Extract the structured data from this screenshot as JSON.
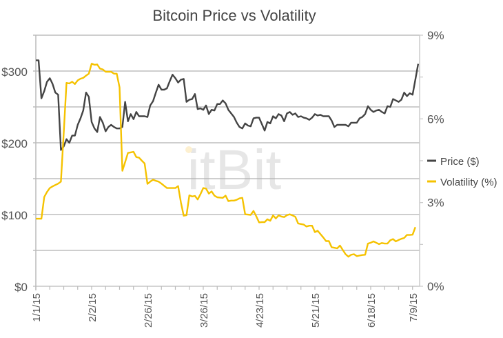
{
  "chart_data": {
    "type": "line",
    "title": "Bitcoin Price vs Volatility",
    "watermark": "itBit",
    "x_tick_labels": [
      "1/1/15",
      "2/2/15",
      "2/26/15",
      "3/26/15",
      "4/23/15",
      "5/21/15",
      "6/18/15",
      "7/9/15"
    ],
    "y_left": {
      "range": [
        0,
        350
      ],
      "tick_labels": [
        "$0",
        "$100",
        "$200",
        "$300"
      ],
      "tick_values": [
        0,
        100,
        200,
        300
      ],
      "gridlines": [
        0,
        50,
        100,
        150,
        200,
        250,
        300,
        350
      ]
    },
    "y_right": {
      "range": [
        0,
        9
      ],
      "tick_labels": [
        "0%",
        "3%",
        "6%",
        "9%"
      ],
      "tick_values": [
        0,
        3,
        6,
        9
      ]
    },
    "grid": true,
    "legend_position": "right",
    "series": [
      {
        "name": "Price ($)",
        "axis": "left",
        "color": "#444444",
        "values": [
          315,
          315,
          262,
          272,
          285,
          290,
          282,
          270,
          267,
          190,
          195,
          205,
          200,
          210,
          210,
          225,
          234,
          245,
          270,
          264,
          229,
          220,
          215,
          236,
          228,
          216,
          222,
          225,
          222,
          220,
          220,
          222,
          257,
          230,
          240,
          233,
          243,
          237,
          237,
          237,
          236,
          252,
          258,
          270,
          281,
          274,
          274,
          276,
          286,
          295,
          290,
          284,
          288,
          289,
          257,
          260,
          261,
          268,
          247,
          248,
          246,
          252,
          240,
          246,
          245,
          254,
          254,
          259,
          255,
          246,
          241,
          236,
          228,
          222,
          220,
          227,
          224,
          223,
          234,
          235,
          235,
          226,
          217,
          229,
          227,
          237,
          234,
          240,
          238,
          230,
          241,
          243,
          239,
          241,
          236,
          237,
          235,
          234,
          232,
          235,
          240,
          238,
          239,
          237,
          237,
          237,
          231,
          222,
          225,
          225,
          225,
          225,
          223,
          228,
          228,
          228,
          234,
          236,
          240,
          251,
          246,
          243,
          245,
          246,
          243,
          241,
          251,
          250,
          261,
          259,
          257,
          260,
          270,
          265,
          269,
          267,
          288,
          310
        ]
      },
      {
        "name": "Volatility (%)",
        "axis": "right",
        "color": "#F5C200",
        "values": [
          2.42,
          2.42,
          2.42,
          3.2,
          3.38,
          3.52,
          3.58,
          3.63,
          3.68,
          3.75,
          5.5,
          7.29,
          7.27,
          7.33,
          7.25,
          7.38,
          7.44,
          7.47,
          7.55,
          7.62,
          7.98,
          7.94,
          7.95,
          7.8,
          7.77,
          7.69,
          7.69,
          7.69,
          7.62,
          7.62,
          7.13,
          4.14,
          4.45,
          4.78,
          4.8,
          4.82,
          4.63,
          4.61,
          4.5,
          4.4,
          3.67,
          3.75,
          3.82,
          3.78,
          3.75,
          3.68,
          3.6,
          3.52,
          3.52,
          3.52,
          3.52,
          3.59,
          3.0,
          2.53,
          2.55,
          3.26,
          3.22,
          3.24,
          3.11,
          3.3,
          3.52,
          3.5,
          3.32,
          3.4,
          3.25,
          3.19,
          3.18,
          3.17,
          3.25,
          3.05,
          3.07,
          3.07,
          3.1,
          3.15,
          3.17,
          2.58,
          2.57,
          2.56,
          2.7,
          2.51,
          2.29,
          2.3,
          2.3,
          2.4,
          2.35,
          2.54,
          2.43,
          2.54,
          2.5,
          2.48,
          2.55,
          2.58,
          2.54,
          2.49,
          2.25,
          2.23,
          2.21,
          2.14,
          2.17,
          2.17,
          1.94,
          1.99,
          1.87,
          1.75,
          1.62,
          1.62,
          1.4,
          1.38,
          1.36,
          1.46,
          1.3,
          1.15,
          1.06,
          1.13,
          1.15,
          1.08,
          1.1,
          1.12,
          1.13,
          1.53,
          1.56,
          1.61,
          1.56,
          1.51,
          1.55,
          1.53,
          1.53,
          1.65,
          1.69,
          1.61,
          1.66,
          1.7,
          1.73,
          1.84,
          1.84,
          1.85,
          2.12
        ]
      }
    ]
  }
}
